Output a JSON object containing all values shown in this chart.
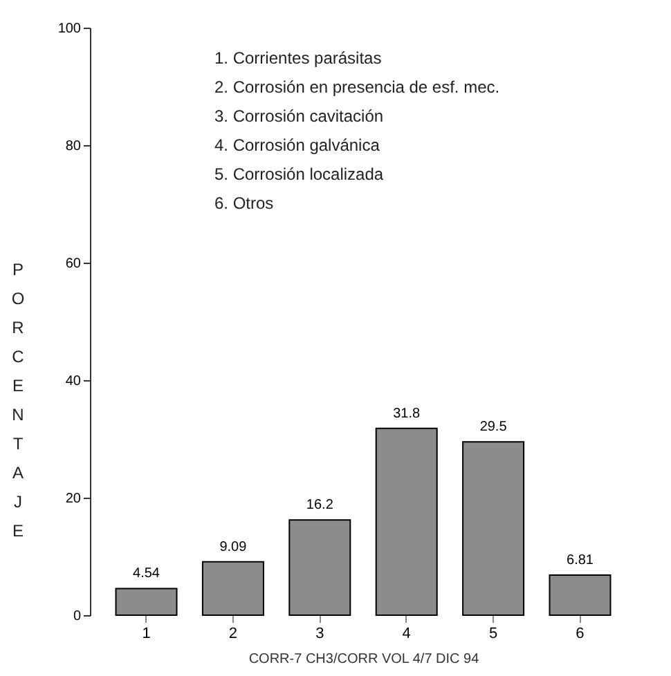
{
  "chart_data": {
    "type": "bar",
    "ylabel": "PORCENTAJE",
    "categories": [
      "1",
      "2",
      "3",
      "4",
      "5",
      "6"
    ],
    "values": [
      4.54,
      9.09,
      16.2,
      31.8,
      29.5,
      6.81
    ],
    "color": "#8c8c8c",
    "ylim": [
      0,
      100
    ],
    "yticks": [
      0,
      20,
      40,
      60,
      80,
      100
    ],
    "data_labels": true,
    "grid": false,
    "annotations": [
      "1. Corrientes parásitas",
      "2. Corrosión en presencia de esf. mec.",
      "3. Corrosión cavitación",
      "4. Corrosión galvánica",
      "5. Corrosión localizada",
      "6. Otros",
      "CORR-7 CH3/CORR VOL 4/7 DIC 94"
    ]
  }
}
